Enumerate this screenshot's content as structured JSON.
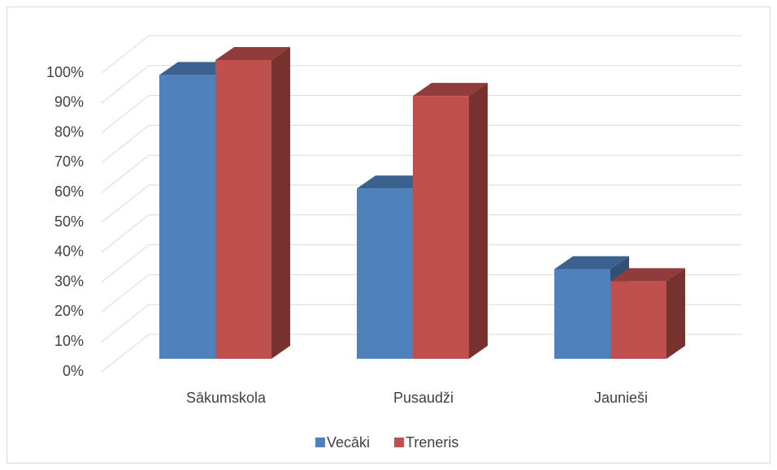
{
  "chart_data": {
    "type": "bar3d",
    "categories": [
      "Sākumskola",
      "Pusaudži",
      "Jaunieši"
    ],
    "series": [
      {
        "name": "Vecāki",
        "color": "#4f81bd",
        "values": [
          95,
          57,
          30
        ]
      },
      {
        "name": "Treneris",
        "color": "#c0504d",
        "values": [
          100,
          88,
          26
        ]
      }
    ],
    "ylim": [
      0,
      100
    ],
    "yticks": [
      {
        "value": 0,
        "label": "0%"
      },
      {
        "value": 10,
        "label": "10%"
      },
      {
        "value": 20,
        "label": "20%"
      },
      {
        "value": 30,
        "label": "30%"
      },
      {
        "value": 40,
        "label": "40%"
      },
      {
        "value": 50,
        "label": "50%"
      },
      {
        "value": 60,
        "label": "60%"
      },
      {
        "value": 70,
        "label": "70%"
      },
      {
        "value": 80,
        "label": "80%"
      },
      {
        "value": 90,
        "label": "90%"
      },
      {
        "value": 100,
        "label": "100%"
      }
    ],
    "grid": true,
    "legend": "bottom"
  }
}
